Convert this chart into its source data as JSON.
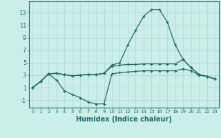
{
  "title": "",
  "xlabel": "Humidex (Indice chaleur)",
  "ylabel": "",
  "bg_color": "#cceee8",
  "line_color": "#1a6b6b",
  "grid_color": "#b8ddd8",
  "x_ticks": [
    0,
    1,
    2,
    3,
    4,
    5,
    6,
    7,
    8,
    9,
    10,
    11,
    12,
    13,
    14,
    15,
    16,
    17,
    18,
    19,
    20,
    21,
    22,
    23
  ],
  "y_ticks": [
    -1,
    1,
    3,
    5,
    7,
    9,
    11,
    13
  ],
  "ylim": [
    -2.2,
    14.8
  ],
  "xlim": [
    -0.5,
    23.5
  ],
  "series": [
    {
      "x": [
        0,
        1,
        2,
        3,
        4,
        5,
        6,
        7,
        8,
        9,
        10,
        11,
        12,
        13,
        14,
        15,
        16,
        17,
        18,
        19,
        20,
        21,
        22,
        23
      ],
      "y": [
        1,
        2.0,
        3.2,
        3.3,
        3.1,
        2.9,
        3.0,
        3.1,
        3.1,
        3.3,
        4.6,
        5.0,
        7.8,
        10.2,
        12.4,
        13.5,
        13.5,
        11.5,
        7.8,
        5.5,
        4.2,
        3.1,
        2.8,
        2.4
      ]
    },
    {
      "x": [
        0,
        1,
        2,
        3,
        4,
        5,
        6,
        7,
        8,
        9,
        10,
        11,
        12,
        13,
        14,
        15,
        16,
        17,
        18,
        19,
        20,
        21,
        22,
        23
      ],
      "y": [
        1,
        2.0,
        3.2,
        3.3,
        3.1,
        2.9,
        3.0,
        3.1,
        3.1,
        3.3,
        4.4,
        4.6,
        4.7,
        4.7,
        4.8,
        4.8,
        4.8,
        4.8,
        4.8,
        5.5,
        4.2,
        3.1,
        2.8,
        2.4
      ]
    },
    {
      "x": [
        0,
        1,
        2,
        3,
        4,
        5,
        6,
        7,
        8,
        9,
        10,
        11,
        12,
        13,
        14,
        15,
        16,
        17,
        18,
        19,
        20,
        21,
        22,
        23
      ],
      "y": [
        1,
        2.0,
        3.2,
        2.2,
        0.5,
        -0.1,
        -0.6,
        -1.3,
        -1.6,
        -1.6,
        3.2,
        3.4,
        3.5,
        3.6,
        3.7,
        3.7,
        3.7,
        3.7,
        3.7,
        4.0,
        3.7,
        3.0,
        2.8,
        2.4
      ]
    }
  ]
}
